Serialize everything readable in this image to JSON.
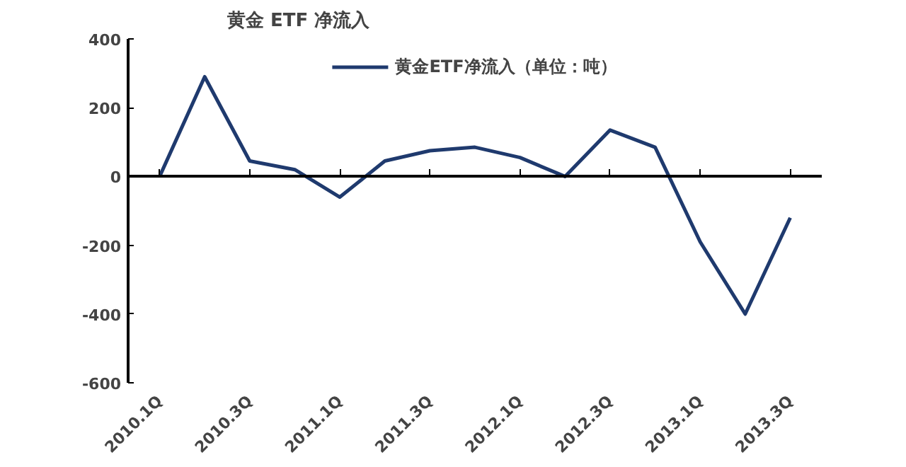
{
  "chart_data": {
    "type": "line",
    "title": "黄金 ETF 净流入",
    "categories": [
      "2010.1Q",
      null,
      "2010.3Q",
      null,
      "2011.1Q",
      null,
      "2011.3Q",
      null,
      "2012.1Q",
      null,
      "2012.3Q",
      null,
      "2013.1Q",
      null,
      "2013.3Q"
    ],
    "series": [
      {
        "name": "黄金ETF净流入（单位：吨）",
        "color": "#1f3a6e",
        "values": [
          0,
          290,
          45,
          20,
          -60,
          45,
          75,
          85,
          55,
          0,
          135,
          85,
          -190,
          -400,
          -120
        ]
      }
    ],
    "ylim": [
      -600,
      400
    ],
    "yticks": [
      -600,
      -400,
      -200,
      0,
      200,
      400
    ],
    "legend": "top",
    "marker": "none",
    "line_style": "solid"
  }
}
